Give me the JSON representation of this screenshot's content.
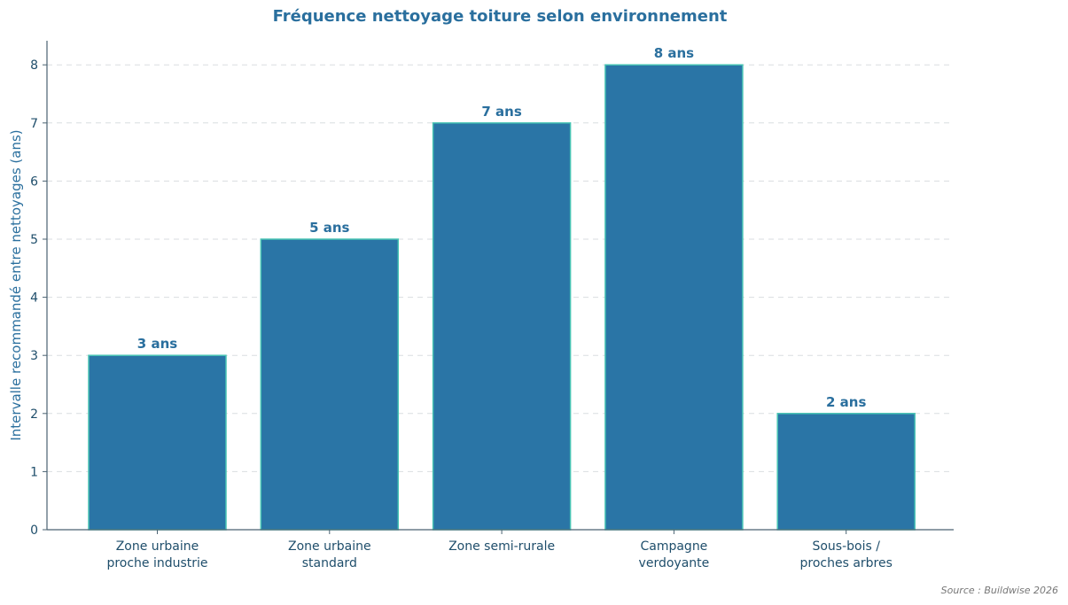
{
  "chart_data": {
    "type": "bar",
    "title": "Fréquence nettoyage toiture selon environnement",
    "xlabel": "",
    "ylabel": "Intervalle recommandé entre nettoyages (ans)",
    "categories": [
      [
        "Zone urbaine",
        "proche industrie"
      ],
      [
        "Zone urbaine",
        "standard"
      ],
      [
        "Zone semi-rurale"
      ],
      [
        "Campagne",
        "verdoyante"
      ],
      [
        "Sous-bois /",
        "proches arbres"
      ]
    ],
    "values": [
      3,
      5,
      7,
      8,
      2
    ],
    "data_labels": [
      "3 ans",
      "5 ans",
      "7 ans",
      "8 ans",
      "2 ans"
    ],
    "ylim": [
      0,
      8.45
    ],
    "yticks": [
      0,
      1,
      2,
      3,
      4,
      5,
      6,
      7,
      8
    ],
    "grid": "horizontal-dashed",
    "colors": {
      "bar_fill": "#2a75a6",
      "bar_edge": "#48c4b4",
      "title": "#2a6f9e",
      "grid": "#d9dde0",
      "axis": "#4a6272"
    }
  },
  "source": "Source : Buildwise 2026"
}
